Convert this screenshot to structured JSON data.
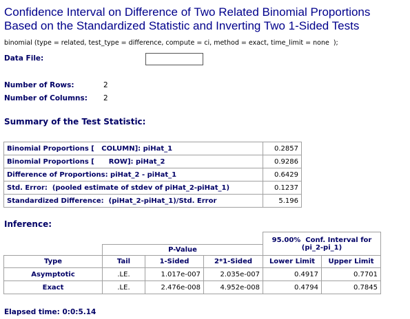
{
  "header": {
    "title_lines": [
      "Confidence Interval on Difference of Two Related Binomial Proportions",
      "Based on the Standardized Statistic and Inverting Two 1-Sided Tests"
    ],
    "command": "binomial (type = related, test_type = difference, compute = ci, method = exact, time_limit = none  );"
  },
  "data_file": {
    "label": "Data File:"
  },
  "fields": [
    {
      "label": "Number of Rows:",
      "value": "2"
    },
    {
      "label": "Number of Columns:",
      "value": "2"
    }
  ],
  "summary": {
    "heading": "Summary of the Test Statistic:",
    "rows": [
      [
        "Binomial Proportions [   COLUMN]: piHat_1",
        "0.2857"
      ],
      [
        "Binomial Proportions [      ROW]: piHat_2",
        "0.9286"
      ],
      [
        "Difference of Proportions: piHat_2 - piHat_1",
        "0.6429"
      ],
      [
        "Std. Error:  (pooled estimate of stdev of piHat_2-piHat_1)",
        "0.1237"
      ],
      [
        "Standardized Difference:  (piHat_2-piHat_1)/Std. Error",
        "5.196"
      ]
    ]
  },
  "inference": {
    "heading": "Inference:",
    "ci_header": [
      "95.00%  Conf. Interval for",
      "(pi_2-pi_1)"
    ],
    "pvalue_header": "P-Value",
    "columns": [
      "Type",
      "Tail",
      "1-Sided",
      "2*1-Sided",
      "Lower Limit",
      "Upper Limit"
    ],
    "rows": [
      [
        "Asymptotic",
        ".LE.",
        "1.017e-007",
        "2.035e-007",
        "0.4917",
        "0.7701"
      ],
      [
        "Exact",
        ".LE.",
        "2.476e-008",
        "4.952e-008",
        "0.4794",
        "0.7845"
      ]
    ]
  },
  "footer": {
    "elapsed": "Elapsed time: 0:0:5.14"
  }
}
